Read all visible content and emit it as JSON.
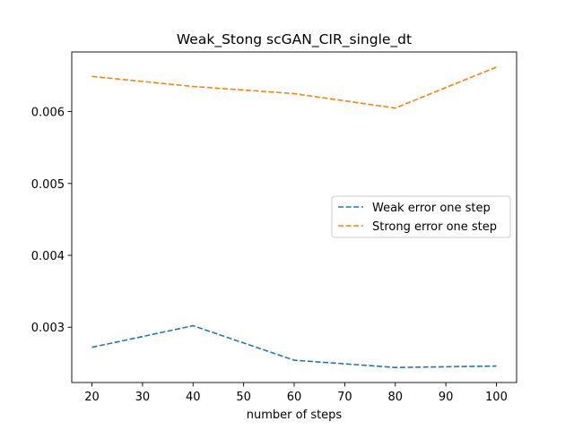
{
  "chart_data": {
    "type": "line",
    "title": "Weak_Stong scGAN_CIR_single_dt",
    "xlabel": "number of steps",
    "ylabel": "",
    "x": [
      20,
      40,
      60,
      80,
      100
    ],
    "xlim": [
      16,
      104
    ],
    "ylim": [
      0.00223,
      0.00683
    ],
    "xticks": [
      20,
      30,
      40,
      50,
      60,
      70,
      80,
      90,
      100
    ],
    "yticks": [
      0.003,
      0.004,
      0.005,
      0.006
    ],
    "ytick_labels": [
      "0.003",
      "0.004",
      "0.005",
      "0.006"
    ],
    "grid": false,
    "legend_position": "center-right",
    "series": [
      {
        "name": "Weak error one step",
        "color": "#1f77b4",
        "linestyle": "dashed",
        "values": [
          0.00272,
          0.00302,
          0.00254,
          0.00244,
          0.00246
        ]
      },
      {
        "name": "Strong error one step",
        "color": "#ff7f0e",
        "linestyle": "dashed",
        "values": [
          0.00649,
          0.00635,
          0.00625,
          0.00605,
          0.00662
        ]
      }
    ]
  }
}
